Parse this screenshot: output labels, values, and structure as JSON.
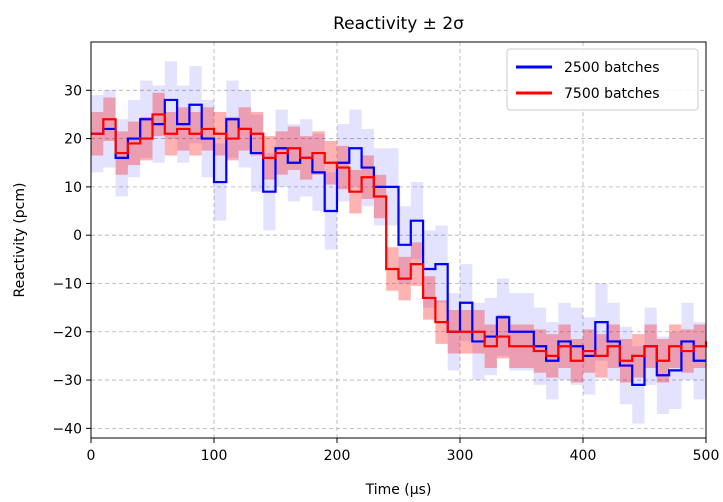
{
  "chart_data": {
    "type": "line",
    "title": "Reactivity ± 2σ",
    "xlabel": "Time (μs)",
    "ylabel": "Reactivity (pcm)",
    "xlim": [
      0,
      500
    ],
    "ylim": [
      -42,
      40
    ],
    "xticks": [
      0,
      100,
      200,
      300,
      400,
      500
    ],
    "yticks": [
      -40,
      -30,
      -20,
      -10,
      0,
      10,
      20,
      30
    ],
    "grid": true,
    "legend_position": "top-right",
    "x": [
      0,
      10,
      20,
      30,
      40,
      50,
      60,
      70,
      80,
      90,
      100,
      110,
      120,
      130,
      140,
      150,
      160,
      170,
      180,
      190,
      200,
      210,
      220,
      230,
      240,
      250,
      260,
      270,
      280,
      290,
      300,
      310,
      320,
      330,
      340,
      350,
      360,
      370,
      380,
      390,
      400,
      410,
      420,
      430,
      440,
      450,
      460,
      470,
      480,
      490,
      500
    ],
    "series": [
      {
        "name": "2500 batches",
        "color": "#0000ff",
        "band_color": "#0000ff",
        "band_opacity": 0.11,
        "values": [
          21,
          22,
          16,
          20,
          24,
          23,
          28,
          23,
          27,
          20,
          11,
          24,
          22,
          17,
          9,
          18,
          15,
          16,
          13,
          5,
          15,
          18,
          14,
          10,
          10,
          -2,
          3,
          -7,
          -6,
          -20,
          -14,
          -22,
          -21,
          -17,
          -20,
          -20,
          -23,
          -26,
          -22,
          -23,
          -25,
          -18,
          -22,
          -27,
          -31,
          -23,
          -29,
          -28,
          -22,
          -26,
          -26
        ],
        "band_halfwidth": [
          8,
          8,
          8,
          8,
          8,
          8,
          8,
          8,
          8,
          8,
          8,
          8,
          8,
          8,
          8,
          8,
          8,
          8,
          8,
          8,
          8,
          8,
          8,
          8,
          8,
          8,
          8,
          8,
          8,
          8,
          8,
          8,
          8,
          8,
          8,
          8,
          8,
          8,
          8,
          8,
          8,
          8,
          8,
          8,
          8,
          8,
          8,
          8,
          8,
          8,
          8
        ]
      },
      {
        "name": "7500 batches",
        "color": "#ff0000",
        "band_color": "#ff0000",
        "band_opacity": 0.3,
        "values": [
          21,
          24,
          17,
          19,
          20,
          25,
          21,
          22,
          21,
          22,
          21,
          20,
          22,
          21,
          16,
          17,
          18,
          16,
          17,
          15,
          14,
          9,
          12,
          8,
          -7,
          -9,
          -6,
          -13,
          -18,
          -20,
          -20,
          -20,
          -23,
          -21,
          -23,
          -23,
          -24,
          -25,
          -23,
          -26,
          -24,
          -25,
          -23,
          -26,
          -25,
          -23,
          -26,
          -23,
          -24,
          -23,
          -22
        ],
        "band_halfwidth": [
          4.5,
          4.5,
          4.5,
          4.5,
          4.5,
          4.5,
          4.5,
          4.5,
          4.5,
          4.5,
          4.5,
          4.5,
          4.5,
          4.5,
          4.5,
          4.5,
          4.5,
          4.5,
          4.5,
          4.5,
          4.5,
          4.5,
          4.5,
          4.5,
          4.5,
          4.5,
          4.5,
          4.5,
          4.5,
          4.5,
          4.5,
          4.5,
          4.5,
          4.5,
          4.5,
          4.5,
          4.5,
          4.5,
          4.5,
          4.5,
          4.5,
          4.5,
          4.5,
          4.5,
          4.5,
          4.5,
          4.5,
          4.5,
          4.5,
          4.5,
          4.5
        ]
      }
    ]
  }
}
